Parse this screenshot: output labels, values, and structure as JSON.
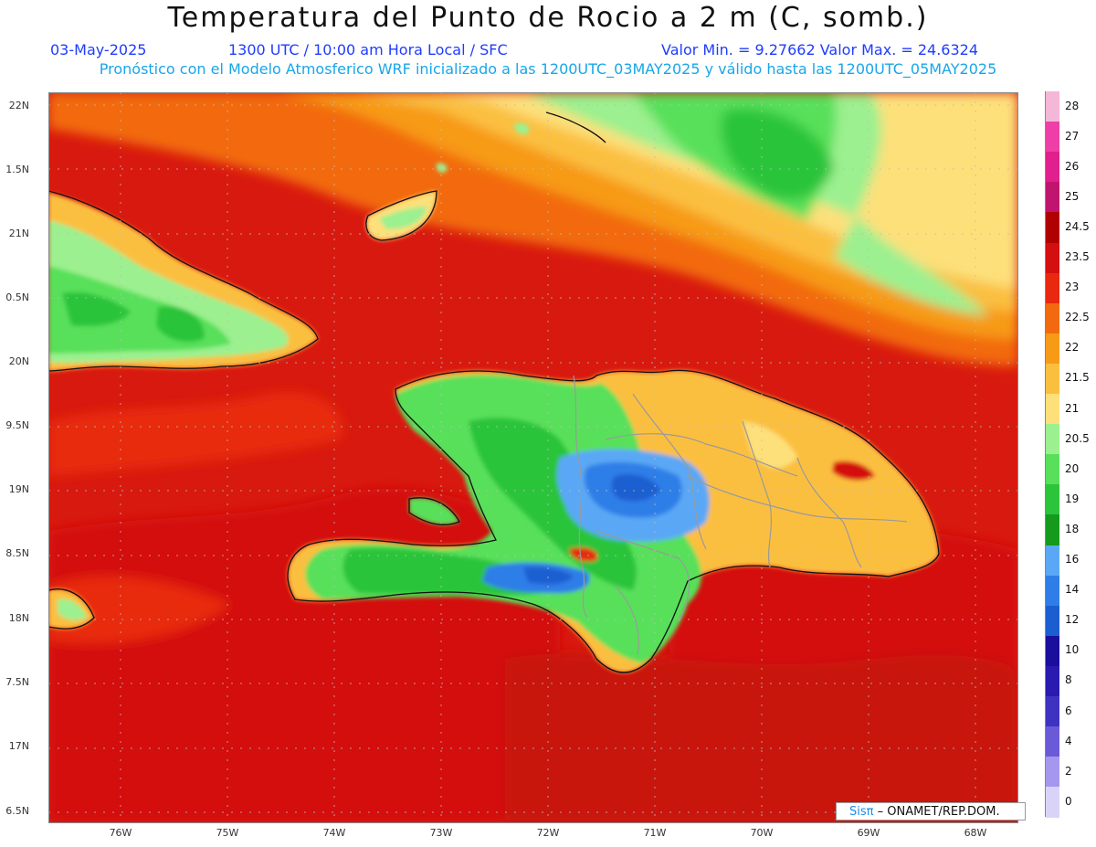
{
  "title": "Temperatura del Punto de Rocio a 2 m (C, somb.)",
  "line1": {
    "date": "03-May-2025",
    "time": "1300 UTC / 10:00 am Hora Local / SFC",
    "minmax": "Valor Min. = 9.27662  Valor Max. = 24.6324"
  },
  "line2": "Pronóstico con el Modelo Atmosferico WRF inicializado a las 1200UTC_03MAY2025 y válido hasta las  1200UTC_05MAY2025",
  "y_labels": [
    "22N",
    "1.5N",
    "21N",
    "0.5N",
    "20N",
    "9.5N",
    "19N",
    "8.5N",
    "18N",
    "7.5N",
    "17N",
    "6.5N"
  ],
  "x_labels": [
    "76W",
    "75W",
    "74W",
    "73W",
    "72W",
    "71W",
    "70W",
    "69W",
    "68W"
  ],
  "colorbar": {
    "labels": [
      "28",
      "27",
      "26",
      "25",
      "24.5",
      "23.5",
      "23",
      "22.5",
      "22",
      "21.5",
      "21",
      "20.5",
      "20",
      "19",
      "18",
      "16",
      "14",
      "12",
      "10",
      "8",
      "6",
      "4",
      "2",
      "0"
    ],
    "colors": [
      "#f5b7d8",
      "#ee3fa6",
      "#e0208c",
      "#c0156e",
      "#b00000",
      "#d40f0f",
      "#e8290f",
      "#f26a10",
      "#f79a18",
      "#fbbf3f",
      "#fde07a",
      "#9cf08f",
      "#58e05a",
      "#2cc43a",
      "#159a1e",
      "#5aa8f5",
      "#2f7ee8",
      "#1c5ed0",
      "#1a0f9c",
      "#2a1ab0",
      "#3e33c0",
      "#6a5ad8",
      "#a597ee",
      "#d9d4f7"
    ]
  },
  "credit": {
    "sis": "Sisπ",
    "rest": "– ONAMET/REP.DOM."
  },
  "icons": {
    "map": "dewpoint-shaded-map"
  }
}
